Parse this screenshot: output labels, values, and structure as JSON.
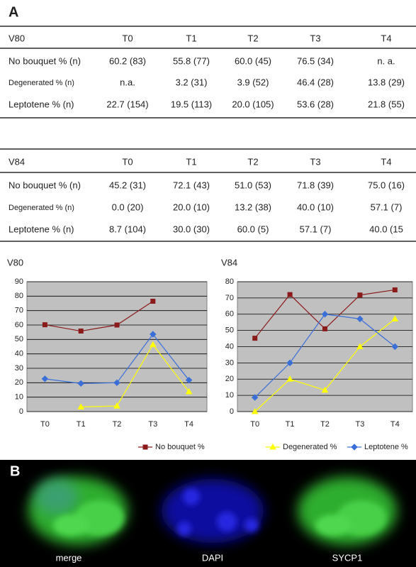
{
  "panel_a": {
    "label": "A",
    "tables": [
      {
        "header": [
          "V80",
          "T0",
          "T1",
          "T2",
          "T3",
          "T4"
        ],
        "rows": [
          [
            "No bouquet % (n)",
            "60.2 (83)",
            "55.8 (77)",
            "60.0 (45)",
            "76.5 (34)",
            "n. a."
          ],
          [
            "Degenerated % (n)",
            "n.a.",
            "3.2 (31)",
            "3.9 (52)",
            "46.4 (28)",
            "13.8 (29)"
          ],
          [
            "Leptotene % (n)",
            "22.7 (154)",
            "19.5 (113)",
            "20.0 (105)",
            "53.6 (28)",
            "21.8 (55)"
          ]
        ]
      },
      {
        "header": [
          "V84",
          "T0",
          "T1",
          "T2",
          "T3",
          "T4"
        ],
        "rows": [
          [
            "No bouquet % (n)",
            "45.2 (31)",
            "72.1 (43)",
            "51.0 (53)",
            "71.8 (39)",
            "75.0 (16)"
          ],
          [
            "Degenerated % (n)",
            "0.0 (20)",
            "20.0 (10)",
            "13.2 (38)",
            "40.0 (10)",
            "57.1 (7)"
          ],
          [
            "Leptotene % (n)",
            "8.7 (104)",
            "30.0 (30)",
            "60.0 (5)",
            "57.1 (7)",
            "40.0 (15"
          ]
        ]
      }
    ]
  },
  "chart_data": [
    {
      "type": "line",
      "title": "V80",
      "categories": [
        "T0",
        "T1",
        "T2",
        "T3",
        "T4"
      ],
      "ylim": [
        0,
        90
      ],
      "yticks": [
        0,
        10,
        20,
        30,
        40,
        50,
        60,
        70,
        80,
        90
      ],
      "grid": true,
      "series": [
        {
          "name": "No bouquet %",
          "color": "#8b1a1a",
          "marker": "square",
          "values": [
            60.2,
            55.8,
            60.0,
            76.5,
            null
          ]
        },
        {
          "name": "Degenerated %",
          "color": "#ffff00",
          "marker": "triangle",
          "values": [
            null,
            3.2,
            3.9,
            46.4,
            13.8
          ]
        },
        {
          "name": "Leptotene %",
          "color": "#3a6fd8",
          "marker": "diamond",
          "values": [
            22.7,
            19.5,
            20.0,
            53.6,
            21.8
          ]
        }
      ]
    },
    {
      "type": "line",
      "title": "V84",
      "categories": [
        "T0",
        "T1",
        "T2",
        "T3",
        "T4"
      ],
      "ylim": [
        0,
        80
      ],
      "yticks": [
        0,
        10,
        20,
        30,
        40,
        50,
        60,
        70,
        80
      ],
      "grid": true,
      "series": [
        {
          "color": "#8b1a1a",
          "marker": "square",
          "values": [
            45.2,
            72.1,
            51.0,
            71.8,
            75.0
          ]
        },
        {
          "color": "#ffff00",
          "marker": "triangle",
          "values": [
            0.0,
            20.0,
            13.2,
            40.0,
            57.1
          ]
        },
        {
          "color": "#3a6fd8",
          "marker": "diamond",
          "values": [
            8.7,
            30.0,
            60.0,
            57.1,
            40.0
          ]
        }
      ]
    }
  ],
  "panel_b": {
    "label": "B",
    "captions": [
      "merge",
      "DAPI",
      "SYCP1"
    ]
  }
}
